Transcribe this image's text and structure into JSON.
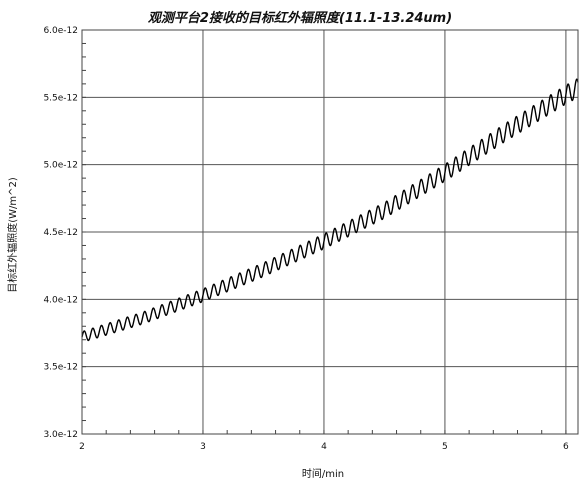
{
  "chart_data": {
    "type": "line",
    "title": "观测平台2接收的目标红外辐照度(11.1-13.24um)",
    "xlabel": "时间/min",
    "ylabel": "目标红外辐照度(W/m^2)",
    "xlim": [
      2,
      6.1
    ],
    "ylim": [
      3e-12,
      6e-12
    ],
    "x_ticks": [
      2,
      3,
      4,
      5,
      6
    ],
    "x_tick_labels": [
      "2",
      "3",
      "4",
      "5",
      "6"
    ],
    "y_ticks": [
      3e-12,
      3.5e-12,
      4e-12,
      4.5e-12,
      5e-12,
      5.5e-12,
      6e-12
    ],
    "y_tick_labels": [
      "3.0e-12",
      "3.5e-12",
      "4.0e-12",
      "4.5e-12",
      "5.0e-12",
      "5.5e-12",
      "6.0e-12"
    ],
    "grid": true,
    "legend": "none",
    "line_color": "#000000",
    "series": [
      {
        "x": [
          2.0,
          2.5,
          3.0,
          3.5,
          4.0,
          4.5,
          5.0,
          5.5,
          6.0,
          6.1
        ],
        "y": [
          3.72e-12,
          3.86e-12,
          4.03e-12,
          4.22e-12,
          4.43e-12,
          4.66e-12,
          4.94e-12,
          5.24e-12,
          5.52e-12,
          5.57e-12
        ],
        "oscillation_amplitude": 5e-14,
        "oscillation_cycles_per_min": 14
      }
    ]
  }
}
